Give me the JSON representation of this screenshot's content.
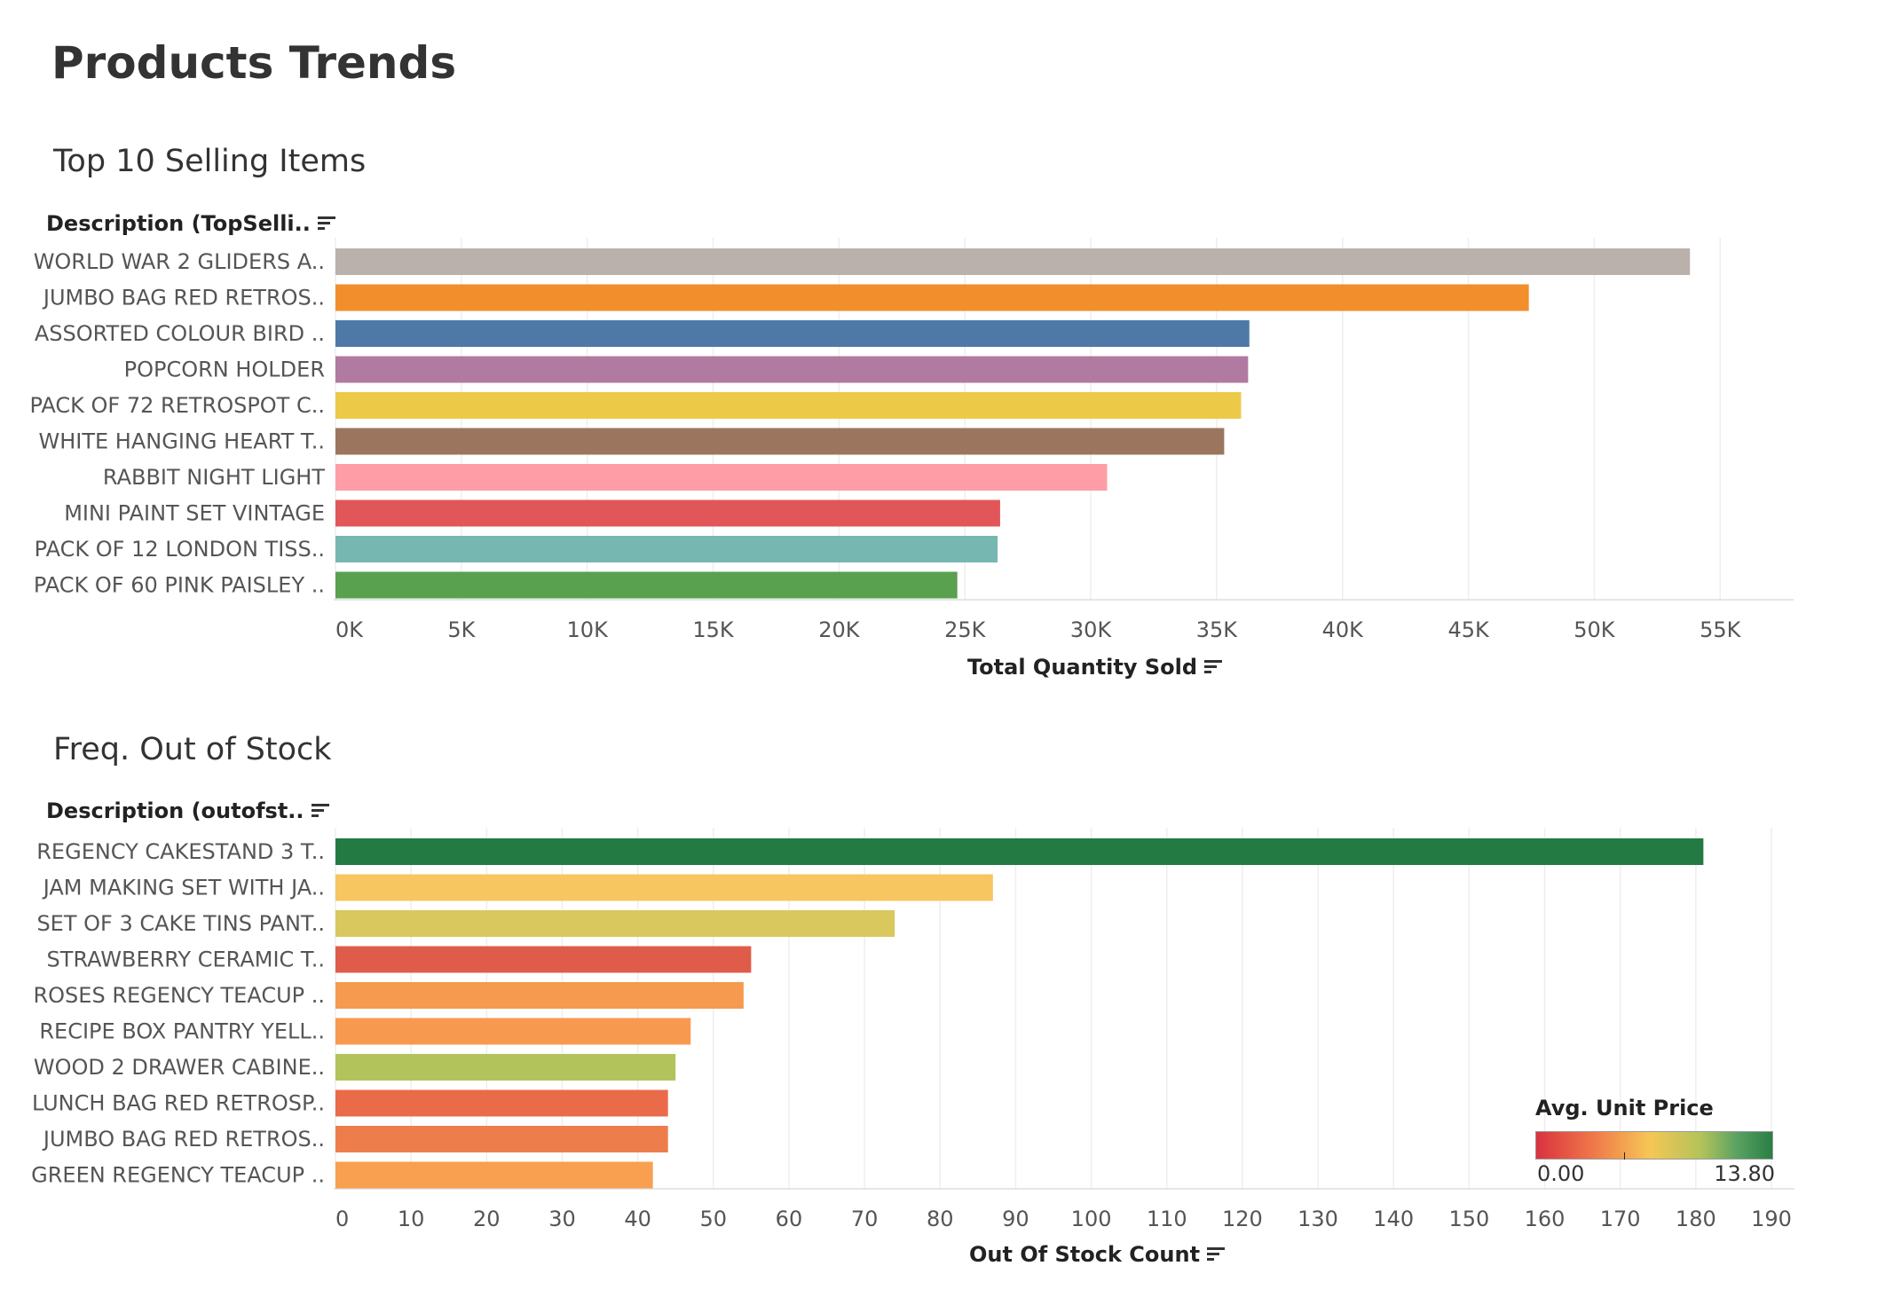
{
  "page": {
    "title": "Products Trends"
  },
  "chart_data": [
    {
      "type": "bar",
      "orientation": "horizontal",
      "title": "Top 10 Selling Items",
      "ylabel": "Description (TopSelli..",
      "xlabel": "Total Quantity Sold",
      "categories": [
        "WORLD WAR 2 GLIDERS A..",
        "JUMBO BAG RED RETROS..",
        "ASSORTED COLOUR BIRD ..",
        "POPCORN HOLDER",
        "PACK OF 72 RETROSPOT C..",
        "WHITE HANGING HEART T..",
        "RABBIT NIGHT LIGHT",
        "MINI PAINT SET VINTAGE",
        "PACK OF 12 LONDON TISS..",
        "PACK OF 60 PINK PAISLEY .."
      ],
      "values": [
        53800,
        47400,
        36300,
        36250,
        35970,
        35300,
        30650,
        26400,
        26300,
        24700
      ],
      "colors": [
        "#bab0ac",
        "#f28e2b",
        "#4e79a7",
        "#b07aa1",
        "#edc948",
        "#9c755f",
        "#ff9da7",
        "#e15759",
        "#76b7b2",
        "#59a14f"
      ],
      "xlim": [
        0,
        57000
      ],
      "xticks": [
        0,
        5000,
        10000,
        15000,
        20000,
        25000,
        30000,
        35000,
        40000,
        45000,
        50000,
        55000
      ],
      "xtick_labels": [
        "0K",
        "5K",
        "10K",
        "15K",
        "20K",
        "25K",
        "30K",
        "35K",
        "40K",
        "45K",
        "50K",
        "55K"
      ],
      "grid": true
    },
    {
      "type": "bar",
      "orientation": "horizontal",
      "title": "Freq. Out of Stock",
      "ylabel": "Description (outofst..",
      "xlabel": "Out Of Stock Count",
      "categories": [
        "REGENCY CAKESTAND 3 T..",
        "JAM MAKING SET WITH JA..",
        "SET OF 3 CAKE TINS PANT..",
        "STRAWBERRY CERAMIC T..",
        "ROSES REGENCY TEACUP ..",
        "RECIPE BOX PANTRY YELL..",
        "WOOD 2 DRAWER CABINE..",
        "LUNCH BAG RED RETROSP..",
        "JUMBO BAG RED RETROS..",
        "GREEN REGENCY TEACUP .."
      ],
      "values": [
        181,
        87,
        74,
        55,
        54,
        47,
        45,
        44,
        44,
        42
      ],
      "colors": [
        "#237a42",
        "#f7c661",
        "#d8c85e",
        "#e05c4a",
        "#f59a4f",
        "#f79a50",
        "#b3c35b",
        "#e96b4a",
        "#ee7d4c",
        "#f8a050"
      ],
      "xlim": [
        0,
        190
      ],
      "xticks": [
        0,
        10,
        20,
        30,
        40,
        50,
        60,
        70,
        80,
        90,
        100,
        110,
        120,
        130,
        140,
        150,
        160,
        170,
        180,
        190
      ],
      "xtick_labels": [
        "0",
        "10",
        "20",
        "30",
        "40",
        "50",
        "60",
        "70",
        "80",
        "90",
        "100",
        "110",
        "120",
        "130",
        "140",
        "150",
        "160",
        "170",
        "180",
        "190"
      ],
      "grid": true,
      "color_legend": {
        "title": "Avg. Unit Price",
        "min_label": "0.00",
        "max_label": "13.80",
        "placement": "bottom-right"
      }
    }
  ]
}
